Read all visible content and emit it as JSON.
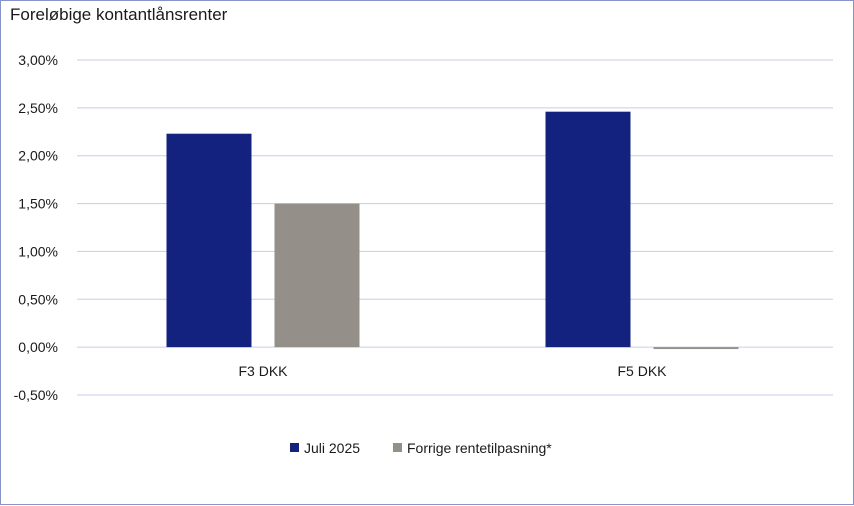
{
  "chart_data": {
    "type": "bar",
    "title": "Foreløbige kontantlånsrenter",
    "categories": [
      "F3 DKK",
      "F5 DKK"
    ],
    "series": [
      {
        "name": "Juli 2025",
        "values": [
          2.23,
          2.46
        ],
        "color": "#13217f"
      },
      {
        "name": "Forrige rentetilpasning*",
        "values": [
          1.5,
          -0.02
        ],
        "color": "#948f89"
      }
    ],
    "y_ticks": [
      "3,00%",
      "2,50%",
      "2,00%",
      "1,50%",
      "1,00%",
      "0,50%",
      "0,00%",
      "-0,50%"
    ],
    "y_tick_values": [
      3.0,
      2.5,
      2.0,
      1.5,
      1.0,
      0.5,
      0.0,
      -0.5
    ],
    "ylim": [
      -0.5,
      3.0
    ],
    "grid": true,
    "gridline_color": "#c9cdeb",
    "legend_position": "bottom"
  }
}
